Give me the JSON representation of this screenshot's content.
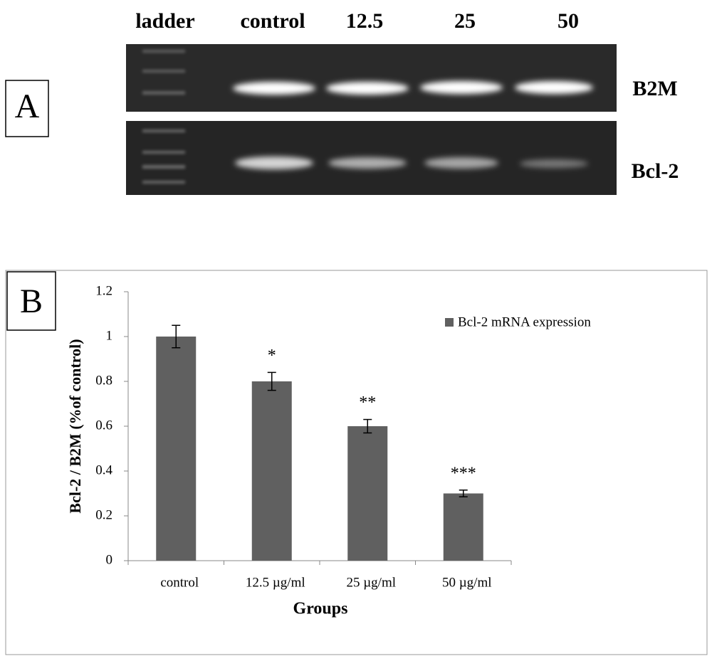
{
  "gel": {
    "panel_label": "A",
    "lanes": [
      "ladder",
      "control",
      "12.5",
      "25",
      "50"
    ],
    "bands": [
      "B2M",
      "Bcl-2"
    ]
  },
  "chart_data": {
    "type": "bar",
    "panel_label": "B",
    "x_label": "Groups",
    "y_label": "Bcl-2 / B2M (%of control)",
    "categories": [
      "control",
      "12.5 µg/ml",
      "25 µg/ml",
      "50 µg/ml"
    ],
    "series": [
      {
        "name": "Bcl-2 mRNA expression",
        "color": "#606060",
        "values": [
          1,
          0.8,
          0.6,
          0.3
        ],
        "errors": [
          0.05,
          0.04,
          0.03,
          0.015
        ]
      }
    ],
    "annotations": [
      null,
      "*",
      "**",
      "***"
    ],
    "ylim": [
      0,
      1.2
    ],
    "yticks": [
      0,
      0.2,
      0.4,
      0.6,
      0.8,
      1,
      1.2
    ],
    "legend": "upper right",
    "grid": false
  }
}
